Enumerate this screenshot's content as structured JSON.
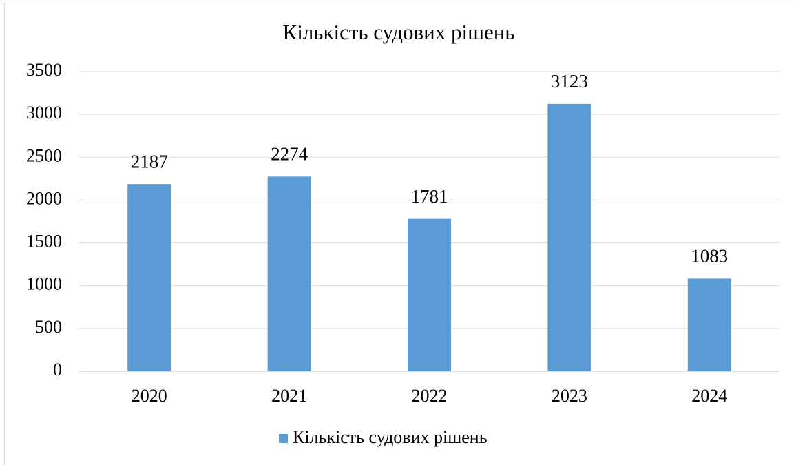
{
  "chart_data": {
    "type": "bar",
    "title": "Кількість судових рішень",
    "categories": [
      "2020",
      "2021",
      "2022",
      "2023",
      "2024"
    ],
    "series": [
      {
        "name": "Кількість судових рішень",
        "color": "#5b9bd5",
        "values": [
          2187,
          2274,
          1781,
          3123,
          1083
        ]
      }
    ],
    "ylim": [
      0,
      3500
    ],
    "yticks": [
      0,
      500,
      1000,
      1500,
      2000,
      2500,
      3000,
      3500
    ],
    "grid": true,
    "legend": "bottom"
  }
}
